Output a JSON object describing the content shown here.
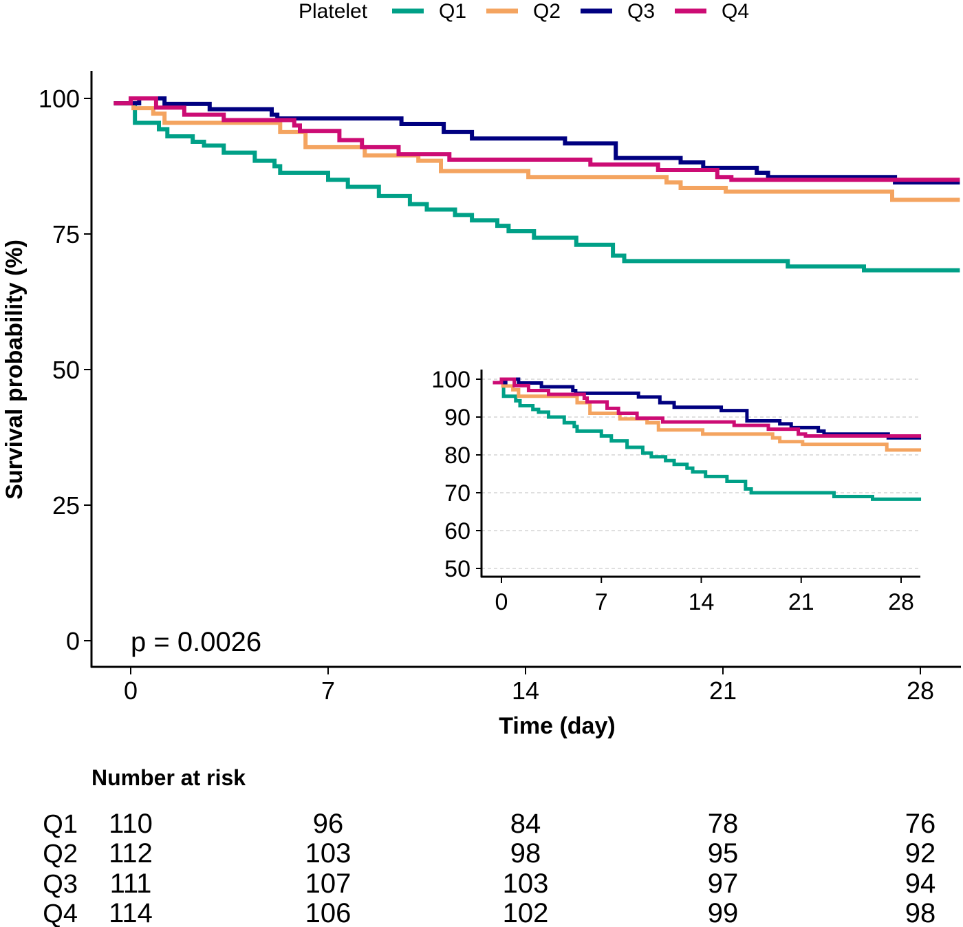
{
  "chart_data": {
    "type": "line",
    "subtype": "kaplan-meier step",
    "legend": {
      "title": "Platelet",
      "placement": "top"
    },
    "xlabel": "Time (day)",
    "ylabel": "Survival probability (%)",
    "x_ticks": [
      "0",
      "7",
      "14",
      "21",
      "28"
    ],
    "x_tick_values": [
      0,
      7,
      14,
      21,
      28
    ],
    "y_ticks": [
      "0",
      "25",
      "50",
      "75",
      "100"
    ],
    "y_tick_values": [
      0,
      25,
      50,
      75,
      100
    ],
    "xlim": [
      -1.4,
      29.4
    ],
    "ylim": [
      -5,
      105
    ],
    "grid": false,
    "annotation": "p = 0.0026",
    "series": [
      {
        "name": "Q1",
        "color": "#00A087",
        "steps": [
          [
            -0.6,
            99.1
          ],
          [
            0.15,
            95.5
          ],
          [
            1.0,
            94.3
          ],
          [
            1.3,
            93
          ],
          [
            2.2,
            92
          ],
          [
            2.6,
            91.3
          ],
          [
            3.3,
            90
          ],
          [
            4.4,
            88.5
          ],
          [
            5.1,
            87.5
          ],
          [
            5.3,
            86.3
          ],
          [
            7.0,
            85
          ],
          [
            7.7,
            83.7
          ],
          [
            8.8,
            82
          ],
          [
            9.9,
            80.5
          ],
          [
            10.5,
            79.5
          ],
          [
            11.5,
            78.5
          ],
          [
            12.1,
            77.5
          ],
          [
            13.0,
            76.5
          ],
          [
            13.4,
            75.5
          ],
          [
            14.3,
            74.3
          ],
          [
            15.8,
            73
          ],
          [
            17.1,
            71
          ],
          [
            17.5,
            70
          ],
          [
            23.3,
            69
          ],
          [
            26.0,
            68.3
          ]
        ]
      },
      {
        "name": "Q2",
        "color": "#F4A460",
        "steps": [
          [
            -0.6,
            99.1
          ],
          [
            0.1,
            98.2
          ],
          [
            0.8,
            97.2
          ],
          [
            1.2,
            95.5
          ],
          [
            5.3,
            93.8
          ],
          [
            6.2,
            91
          ],
          [
            8.3,
            89.5
          ],
          [
            10.2,
            88.5
          ],
          [
            11.0,
            86.6
          ],
          [
            14.1,
            85.5
          ],
          [
            19.0,
            84.5
          ],
          [
            19.5,
            83.5
          ],
          [
            21.1,
            82.8
          ],
          [
            27.0,
            81.3
          ]
        ]
      },
      {
        "name": "Q3",
        "color": "#000080",
        "steps": [
          [
            -0.6,
            99.1
          ],
          [
            0.3,
            100
          ],
          [
            1.2,
            99
          ],
          [
            2.8,
            98
          ],
          [
            5.0,
            97
          ],
          [
            5.2,
            96.3
          ],
          [
            9.6,
            95.3
          ],
          [
            11.1,
            93.8
          ],
          [
            12.1,
            92.6
          ],
          [
            15.4,
            91.7
          ],
          [
            17.2,
            89
          ],
          [
            19.5,
            88.2
          ],
          [
            20.3,
            87.2
          ],
          [
            22.2,
            86.3
          ],
          [
            22.6,
            85.5
          ],
          [
            27.1,
            84.5
          ]
        ]
      },
      {
        "name": "Q4",
        "color": "#CC0C74",
        "steps": [
          [
            -0.6,
            99.1
          ],
          [
            0.0,
            100
          ],
          [
            0.9,
            98.3
          ],
          [
            1.9,
            97
          ],
          [
            3.3,
            96
          ],
          [
            5.8,
            95
          ],
          [
            6.0,
            94
          ],
          [
            7.4,
            92.3
          ],
          [
            8.2,
            91
          ],
          [
            9.5,
            89.7
          ],
          [
            11.3,
            88.7
          ],
          [
            16.3,
            87.8
          ],
          [
            18.7,
            86.8
          ],
          [
            20.8,
            85.5
          ],
          [
            21.3,
            85
          ]
        ]
      }
    ],
    "inset": {
      "x_ticks": [
        "0",
        "7",
        "14",
        "21",
        "28"
      ],
      "x_tick_values": [
        0,
        7,
        14,
        21,
        28
      ],
      "y_ticks": [
        "50",
        "60",
        "70",
        "80",
        "90",
        "100"
      ],
      "y_tick_values": [
        50,
        60,
        70,
        80,
        90,
        100
      ],
      "xlim": [
        -1.4,
        29.4
      ],
      "ylim": [
        47.5,
        102.5
      ],
      "grid": "dashed horizontal"
    },
    "risk_table": {
      "title": "Number at risk",
      "rows": [
        {
          "label": "Q1",
          "values": [
            "110",
            "96",
            "84",
            "78",
            "76"
          ]
        },
        {
          "label": "Q2",
          "values": [
            "112",
            "103",
            "98",
            "95",
            "92"
          ]
        },
        {
          "label": "Q3",
          "values": [
            "111",
            "107",
            "103",
            "97",
            "94"
          ]
        },
        {
          "label": "Q4",
          "values": [
            "114",
            "106",
            "102",
            "99",
            "98"
          ]
        }
      ]
    }
  }
}
